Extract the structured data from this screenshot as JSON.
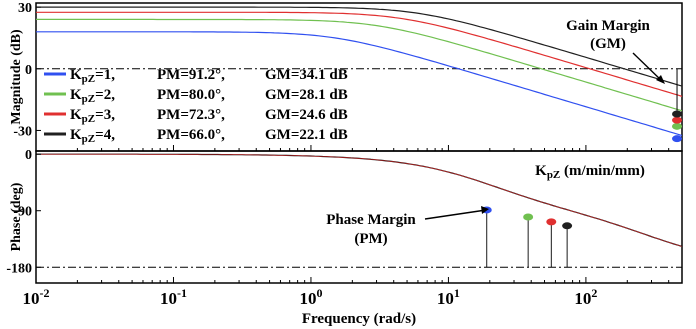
{
  "chart_data": [
    {
      "type": "line",
      "panel": "magnitude",
      "ylabel": "Magnitude (dB)",
      "xscale": "log",
      "xlim": [
        0.01,
        500
      ],
      "ylim": [
        -40,
        32
      ],
      "yticks": [
        30,
        0,
        -30
      ],
      "grid": false,
      "reference_line": 0,
      "legend_position": "left",
      "series": [
        {
          "name": "KpZ=1",
          "color": "#3050f0",
          "low_freq_gain_db": 18,
          "corner_freq": 1.5,
          "high_freq_slope_db_per_decade": -20,
          "gm_marker": {
            "x": 460,
            "y": -34
          }
        },
        {
          "name": "KpZ=2",
          "color": "#70c050",
          "low_freq_gain_db": 24,
          "corner_freq": 3,
          "high_freq_slope_db_per_decade": -20,
          "gm_marker": {
            "x": 460,
            "y": -28
          }
        },
        {
          "name": "KpZ=3",
          "color": "#e03030",
          "low_freq_gain_db": 27.5,
          "corner_freq": 4.5,
          "high_freq_slope_db_per_decade": -20,
          "gm_marker": {
            "x": 460,
            "y": -25
          }
        },
        {
          "name": "KpZ=4",
          "color": "#202020",
          "low_freq_gain_db": 30,
          "corner_freq": 6,
          "high_freq_slope_db_per_decade": -20,
          "gm_marker": {
            "x": 460,
            "y": -22
          }
        }
      ],
      "legend": [
        {
          "kp": "1",
          "pm": "PM=91.2°,",
          "gm": "GM=34.1 dB"
        },
        {
          "kp": "2",
          "pm": "PM=80.0°,",
          "gm": "GM=28.1 dB"
        },
        {
          "kp": "3",
          "pm": "PM=72.3°,",
          "gm": "GM=24.6 dB"
        },
        {
          "kp": "4",
          "pm": "PM=66.0°,",
          "gm": "GM=22.1 dB"
        }
      ],
      "legend_prefix": "K",
      "legend_sub": "pZ",
      "legend_eq": "=",
      "annotation": {
        "line1": "Gain Margin",
        "line2": "(GM)"
      }
    },
    {
      "type": "line",
      "panel": "phase",
      "ylabel": "Phase (deg)",
      "xlabel": "Frequency (rad/s)",
      "xscale": "log",
      "xlim": [
        0.01,
        500
      ],
      "ylim": [
        -205,
        5
      ],
      "yticks": [
        0,
        -90,
        -180
      ],
      "xticks": [
        0.01,
        0.1,
        1,
        10,
        100
      ],
      "xtick_labels": [
        {
          "base": "10",
          "exp": "-2"
        },
        {
          "base": "10",
          "exp": "-1"
        },
        {
          "base": "10",
          "exp": "0"
        },
        {
          "base": "10",
          "exp": "1"
        },
        {
          "base": "10",
          "exp": "2"
        }
      ],
      "reference_line": -180,
      "pm_markers": [
        {
          "x": 19,
          "y": -88.8,
          "color": "#3050f0"
        },
        {
          "x": 38,
          "y": -100,
          "color": "#70c050"
        },
        {
          "x": 56,
          "y": -107.7,
          "color": "#e03030"
        },
        {
          "x": 73,
          "y": -114,
          "color": "#202020"
        }
      ],
      "units_label": {
        "prefix": "K",
        "sub": "pZ",
        "suffix": " (m/min/mm)"
      },
      "annotation": {
        "line1": "Phase Margin",
        "line2": "(PM)"
      }
    }
  ]
}
